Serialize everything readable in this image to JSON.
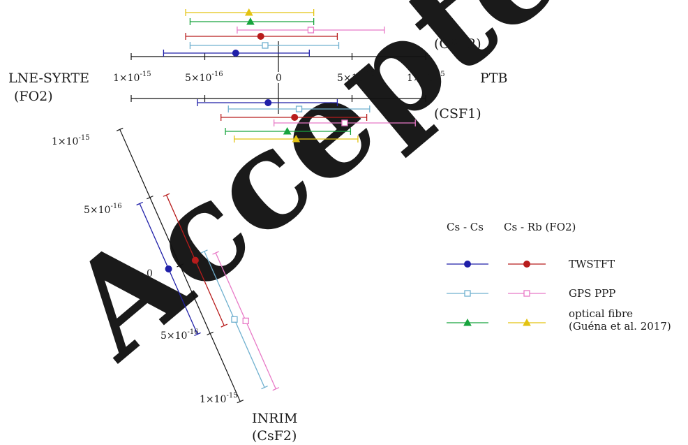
{
  "watermark": "Accepted",
  "chart_data": {
    "type": "error-bar comparison",
    "units": "fractional frequency difference",
    "scales": [
      {
        "id": "ptb-csf2",
        "end_labels": [
          "(CSF2)"
        ],
        "axis_range": [
          -1e-15,
          1e-15
        ],
        "ticks": [
          {
            "v": -1e-15,
            "label": "1×10",
            "sup": "-15"
          },
          {
            "v": -5e-16,
            "label": "5×10",
            "sup": "-16"
          },
          {
            "v": 0,
            "label": "0",
            "sup": ""
          },
          {
            "v": 5e-16,
            "label": "5×10",
            "sup": "-16"
          },
          {
            "v": 1e-15,
            "label": "1×10",
            "sup": "-15"
          }
        ]
      },
      {
        "id": "ptb-csf1",
        "end_labels": [
          "(CSF1)"
        ],
        "axis_range": [
          -1e-15,
          1e-15
        ]
      },
      {
        "id": "inrim-csf2",
        "end_labels": [
          "INRIM",
          "(CsF2)"
        ],
        "axis_range": [
          -1e-15,
          1e-15
        ],
        "ticks": [
          {
            "v": -1e-15,
            "label": "1×10",
            "sup": "-15"
          },
          {
            "v": -5e-16,
            "label": "5×10",
            "sup": "-16"
          },
          {
            "v": 0,
            "label": "0",
            "sup": ""
          },
          {
            "v": 5e-16,
            "label": "5×10",
            "sup": "-16"
          },
          {
            "v": 1e-15,
            "label": "1×10",
            "sup": "-15"
          }
        ]
      }
    ],
    "side_labels": {
      "left": [
        "LNE-SYRTE",
        "(FO2)"
      ],
      "right": [
        "PTB"
      ]
    },
    "groups": [
      {
        "scale": "ptb-csf2",
        "points": [
          {
            "series": "optical fibre (Cs - Rb)",
            "value": -2e-16,
            "low": -6.3e-16,
            "high": 2.4e-16
          },
          {
            "series": "optical fibre (Cs - Cs)",
            "value": -1.9e-16,
            "low": -6e-16,
            "high": 2.4e-16
          },
          {
            "series": "GPS PPP (Cs - Rb)",
            "value": 2.2e-16,
            "low": -2.8e-16,
            "high": 7.2e-16
          },
          {
            "series": "TWSTFT (Cs - Rb)",
            "value": -1.2e-16,
            "low": -6.3e-16,
            "high": 4e-16
          },
          {
            "series": "GPS PPP (Cs - Cs)",
            "value": -9e-17,
            "low": -6e-16,
            "high": 4.1e-16
          },
          {
            "series": "TWSTFT (Cs - Cs)",
            "value": -2.9e-16,
            "low": -7.8e-16,
            "high": 2.1e-16
          }
        ]
      },
      {
        "scale": "ptb-csf1",
        "points": [
          {
            "series": "TWSTFT (Cs - Cs)",
            "value": -7e-17,
            "low": -5.5e-16,
            "high": 4e-16
          },
          {
            "series": "GPS PPP (Cs - Cs)",
            "value": 1.4e-16,
            "low": -3.4e-16,
            "high": 6.2e-16
          },
          {
            "series": "TWSTFT (Cs - Rb)",
            "value": 1.1e-16,
            "low": -3.9e-16,
            "high": 6e-16
          },
          {
            "series": "GPS PPP (Cs - Rb)",
            "value": 4.5e-16,
            "low": -3e-17,
            "high": 9.3e-16
          },
          {
            "series": "optical fibre (Cs - Cs)",
            "value": 6e-17,
            "low": -3.6e-16,
            "high": 4.9e-16
          },
          {
            "series": "optical fibre (Cs - Rb)",
            "value": 1.2e-16,
            "low": -3e-16,
            "high": 5.4e-16
          }
        ]
      },
      {
        "scale": "inrim-csf2",
        "points": [
          {
            "series": "TWSTFT (Cs - Cs)",
            "value": -1e-17,
            "low": -4.9e-16,
            "high": 4.7e-16
          },
          {
            "series": "TWSTFT (Cs - Rb)",
            "value": 1e-17,
            "low": -4.7e-16,
            "high": 4.9e-16
          },
          {
            "series": "GPS PPP (Cs - Cs)",
            "value": 4.8e-16,
            "low": -2e-17,
            "high": 9.8e-16
          },
          {
            "series": "GPS PPP (Cs - Rb)",
            "value": 5.2e-16,
            "low": 2e-17,
            "high": 1.02e-15
          }
        ]
      }
    ],
    "legend": {
      "column_headers": [
        "Cs - Cs",
        "Cs - Rb (FO2)"
      ],
      "entries": [
        {
          "label": "TWSTFT",
          "marker": "circle",
          "cs_cs_color": "#1f1fa8",
          "cs_rb_color": "#b81c1c",
          "cs_rb_marker": "circle"
        },
        {
          "label": "GPS PPP",
          "marker": "open-square",
          "cs_cs_color": "#6fb0cf",
          "cs_rb_color": "#e879c6",
          "cs_rb_marker": "open-square"
        },
        {
          "label": "optical fibre",
          "label2": "(Guéna et al. 2017)",
          "marker": "triangle",
          "cs_cs_color": "#17a43d",
          "cs_rb_color": "#e3c312",
          "cs_rb_marker": "triangle"
        }
      ]
    },
    "series_colors": {
      "TWSTFT (Cs - Cs)": "#1f1fa8",
      "TWSTFT (Cs - Rb)": "#b81c1c",
      "GPS PPP (Cs - Cs)": "#6fb0cf",
      "GPS PPP (Cs - Rb)": "#e879c6",
      "optical fibre (Cs - Cs)": "#17a43d",
      "optical fibre (Cs - Rb)": "#e3c312"
    },
    "series_markers": {
      "TWSTFT (Cs - Cs)": "circle",
      "TWSTFT (Cs - Rb)": "circle",
      "GPS PPP (Cs - Cs)": "open-square",
      "GPS PPP (Cs - Rb)": "open-square",
      "optical fibre (Cs - Cs)": "triangle",
      "optical fibre (Cs - Rb)": "triangle"
    }
  }
}
